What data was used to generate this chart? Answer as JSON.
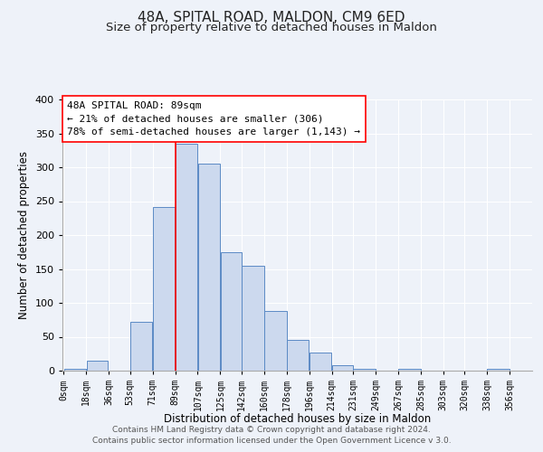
{
  "title": "48A, SPITAL ROAD, MALDON, CM9 6ED",
  "subtitle": "Size of property relative to detached houses in Maldon",
  "xlabel": "Distribution of detached houses by size in Maldon",
  "ylabel": "Number of detached properties",
  "bar_left_edges": [
    0,
    18,
    36,
    53,
    71,
    89,
    107,
    125,
    142,
    160,
    178,
    196,
    214,
    231,
    249,
    267,
    285,
    303,
    320,
    338
  ],
  "bar_heights": [
    3,
    15,
    0,
    72,
    242,
    335,
    305,
    175,
    155,
    88,
    45,
    27,
    8,
    3,
    0,
    3,
    0,
    0,
    0,
    3
  ],
  "bar_widths": [
    18,
    17,
    17,
    18,
    18,
    18,
    18,
    17,
    18,
    18,
    18,
    18,
    17,
    18,
    18,
    18,
    18,
    17,
    18,
    18
  ],
  "tick_positions": [
    0,
    18,
    36,
    53,
    71,
    89,
    107,
    125,
    142,
    160,
    178,
    196,
    214,
    231,
    249,
    267,
    285,
    303,
    320,
    338,
    356
  ],
  "tick_labels": [
    "0sqm",
    "18sqm",
    "36sqm",
    "53sqm",
    "71sqm",
    "89sqm",
    "107sqm",
    "125sqm",
    "142sqm",
    "160sqm",
    "178sqm",
    "196sqm",
    "214sqm",
    "231sqm",
    "249sqm",
    "267sqm",
    "285sqm",
    "303sqm",
    "320sqm",
    "338sqm",
    "356sqm"
  ],
  "bar_color": "#ccd9ee",
  "bar_edge_color": "#5b8ac5",
  "red_line_x": 89,
  "ylim": [
    0,
    400
  ],
  "yticks": [
    0,
    50,
    100,
    150,
    200,
    250,
    300,
    350,
    400
  ],
  "annotation_line1": "48A SPITAL ROAD: 89sqm",
  "annotation_line2": "← 21% of detached houses are smaller (306)",
  "annotation_line3": "78% of semi-detached houses are larger (1,143) →",
  "footer_line1": "Contains HM Land Registry data © Crown copyright and database right 2024.",
  "footer_line2": "Contains public sector information licensed under the Open Government Licence v 3.0.",
  "background_color": "#eef2f9",
  "grid_color": "#ffffff",
  "title_fontsize": 11,
  "subtitle_fontsize": 9.5,
  "xlabel_fontsize": 8.5,
  "ylabel_fontsize": 8.5,
  "tick_fontsize": 7,
  "annotation_fontsize": 8,
  "footer_fontsize": 6.5
}
